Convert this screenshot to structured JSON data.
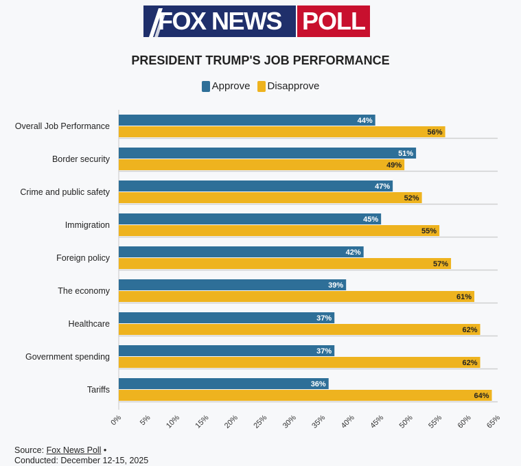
{
  "logo": {
    "left": "FOX NEWS",
    "right": "POLL"
  },
  "chart_data": {
    "type": "bar",
    "orientation": "horizontal",
    "title": "PRESIDENT TRUMP'S JOB PERFORMANCE",
    "categories": [
      "Overall Job Performance",
      "Border security",
      "Crime and public safety",
      "Immigration",
      "Foreign policy",
      "The economy",
      "Healthcare",
      "Government spending",
      "Tariffs"
    ],
    "series": [
      {
        "name": "Approve",
        "color": "#2e6f98",
        "label_color": "#ffffff",
        "values": [
          44,
          51,
          47,
          45,
          42,
          39,
          37,
          37,
          36
        ]
      },
      {
        "name": "Disapprove",
        "color": "#eeb31f",
        "label_color": "#222222",
        "values": [
          56,
          49,
          52,
          55,
          57,
          61,
          62,
          62,
          64
        ]
      }
    ],
    "xlim": [
      0,
      65
    ],
    "xticks": [
      "0%",
      "5%",
      "10%",
      "15%",
      "20%",
      "25%",
      "30%",
      "35%",
      "40%",
      "45%",
      "50%",
      "55%",
      "60%",
      "65%"
    ],
    "value_suffix": "%",
    "legend_position": "top-center"
  },
  "footer": {
    "source_prefix": "Source: ",
    "source_link": "Fox News Poll",
    "source_suffix": " •",
    "conducted": "Conducted: December 12-15, 2025"
  }
}
